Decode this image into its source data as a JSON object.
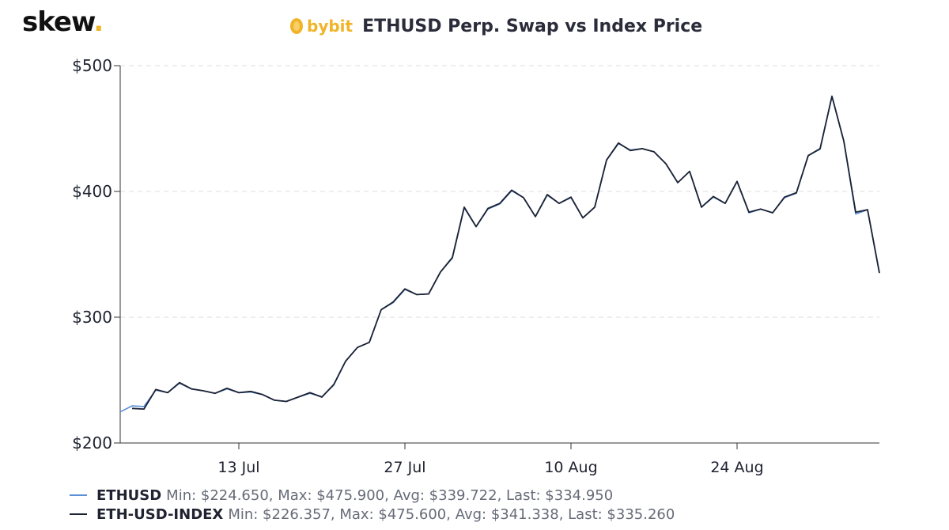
{
  "header": {
    "logo_text": "skew",
    "logo_dot": ".",
    "brand_name": "bybit",
    "title": "ETHUSD Perp. Swap vs Index Price"
  },
  "colors": {
    "ethusd": "#5b8fd6",
    "index": "#1b2233",
    "grid": "#dddddd",
    "brand": "#f0b429"
  },
  "legend": [
    {
      "name": "ETHUSD",
      "stats": "Min: $224.650, Max: $475.900, Avg: $339.722, Last: $334.950"
    },
    {
      "name": "ETH-USD-INDEX",
      "stats": "Min: $226.357, Max: $475.600, Avg: $341.338, Last: $335.260"
    }
  ],
  "chart_data": {
    "type": "line",
    "ylim": [
      200,
      500
    ],
    "yticks": [
      200,
      300,
      400,
      500
    ],
    "ytick_labels": [
      "$200",
      "$300",
      "$400",
      "$500"
    ],
    "xticks": [
      "2020-07-13",
      "2020-07-27",
      "2020-08-10",
      "2020-08-24"
    ],
    "xtick_labels": [
      "13 Jul",
      "27 Jul",
      "10 Aug",
      "24 Aug"
    ],
    "x_range": [
      "2020-07-03",
      "2020-09-05"
    ],
    "grid": true,
    "legend_position": "bottom-left",
    "series": [
      {
        "name": "ETHUSD",
        "x": [
          "2020-07-03",
          "2020-07-04",
          "2020-07-05",
          "2020-07-06",
          "2020-07-07",
          "2020-07-08",
          "2020-07-09",
          "2020-07-10",
          "2020-07-11",
          "2020-07-12",
          "2020-07-13",
          "2020-07-14",
          "2020-07-15",
          "2020-07-16",
          "2020-07-17",
          "2020-07-18",
          "2020-07-19",
          "2020-07-20",
          "2020-07-21",
          "2020-07-22",
          "2020-07-23",
          "2020-07-24",
          "2020-07-25",
          "2020-07-26",
          "2020-07-27",
          "2020-07-28",
          "2020-07-29",
          "2020-07-30",
          "2020-07-31",
          "2020-08-01",
          "2020-08-02",
          "2020-08-03",
          "2020-08-04",
          "2020-08-05",
          "2020-08-06",
          "2020-08-07",
          "2020-08-08",
          "2020-08-09",
          "2020-08-10",
          "2020-08-11",
          "2020-08-12",
          "2020-08-13",
          "2020-08-14",
          "2020-08-15",
          "2020-08-16",
          "2020-08-17",
          "2020-08-18",
          "2020-08-19",
          "2020-08-20",
          "2020-08-21",
          "2020-08-22",
          "2020-08-23",
          "2020-08-24",
          "2020-08-25",
          "2020-08-26",
          "2020-08-27",
          "2020-08-28",
          "2020-08-29",
          "2020-08-30",
          "2020-08-31",
          "2020-09-01",
          "2020-09-02",
          "2020-09-03",
          "2020-09-04",
          "2020-09-05"
        ],
        "y": [
          224.7,
          229.5,
          229.0,
          242.0,
          240.0,
          247.5,
          243.0,
          241.5,
          239.5,
          243.0,
          240.0,
          240.5,
          238.5,
          234.0,
          233.0,
          236.5,
          239.5,
          236.8,
          246.0,
          265.0,
          276.0,
          280.0,
          306.0,
          311.5,
          322.0,
          318.0,
          318.5,
          336.0,
          347.0,
          387.0,
          372.0,
          386.0,
          390.0,
          400.5,
          395.0,
          380.0,
          397.0,
          390.5,
          395.0,
          379.0,
          387.5,
          425.0,
          438.0,
          433.0,
          434.0,
          431.5,
          422.0,
          407.0,
          416.0,
          387.5,
          395.5,
          390.5,
          408.0,
          383.0,
          386.0,
          383.0,
          395.0,
          398.5,
          428.5,
          433.5,
          475.9,
          440.0,
          382.0,
          385.5,
          334.95
        ]
      },
      {
        "name": "ETH-USD-INDEX",
        "x": [
          "2020-07-04",
          "2020-07-05",
          "2020-07-06",
          "2020-07-07",
          "2020-07-08",
          "2020-07-09",
          "2020-07-10",
          "2020-07-11",
          "2020-07-12",
          "2020-07-13",
          "2020-07-14",
          "2020-07-15",
          "2020-07-16",
          "2020-07-17",
          "2020-07-18",
          "2020-07-19",
          "2020-07-20",
          "2020-07-21",
          "2020-07-22",
          "2020-07-23",
          "2020-07-24",
          "2020-07-25",
          "2020-07-26",
          "2020-07-27",
          "2020-07-28",
          "2020-07-29",
          "2020-07-30",
          "2020-07-31",
          "2020-08-01",
          "2020-08-02",
          "2020-08-03",
          "2020-08-04",
          "2020-08-05",
          "2020-08-06",
          "2020-08-07",
          "2020-08-08",
          "2020-08-09",
          "2020-08-10",
          "2020-08-11",
          "2020-08-12",
          "2020-08-13",
          "2020-08-14",
          "2020-08-15",
          "2020-08-16",
          "2020-08-17",
          "2020-08-18",
          "2020-08-19",
          "2020-08-20",
          "2020-08-21",
          "2020-08-22",
          "2020-08-23",
          "2020-08-24",
          "2020-08-25",
          "2020-08-26",
          "2020-08-27",
          "2020-08-28",
          "2020-08-29",
          "2020-08-30",
          "2020-08-31",
          "2020-09-01",
          "2020-09-02",
          "2020-09-03",
          "2020-09-04",
          "2020-09-05"
        ],
        "y": [
          227.5,
          227.0,
          242.5,
          240.0,
          248.0,
          243.0,
          241.5,
          239.5,
          243.5,
          240.0,
          241.0,
          238.5,
          234.0,
          233.0,
          236.5,
          240.0,
          236.5,
          246.5,
          265.0,
          276.0,
          280.0,
          306.0,
          312.0,
          322.5,
          318.0,
          318.5,
          336.0,
          347.5,
          387.5,
          372.0,
          386.5,
          390.5,
          401.0,
          395.0,
          380.0,
          397.5,
          390.5,
          395.5,
          379.0,
          387.5,
          425.0,
          438.5,
          432.5,
          434.0,
          431.5,
          422.0,
          407.0,
          416.0,
          387.5,
          396.0,
          390.5,
          408.0,
          383.5,
          386.0,
          383.0,
          395.5,
          399.0,
          428.5,
          434.0,
          475.6,
          440.0,
          383.5,
          385.5,
          335.26
        ]
      }
    ]
  }
}
